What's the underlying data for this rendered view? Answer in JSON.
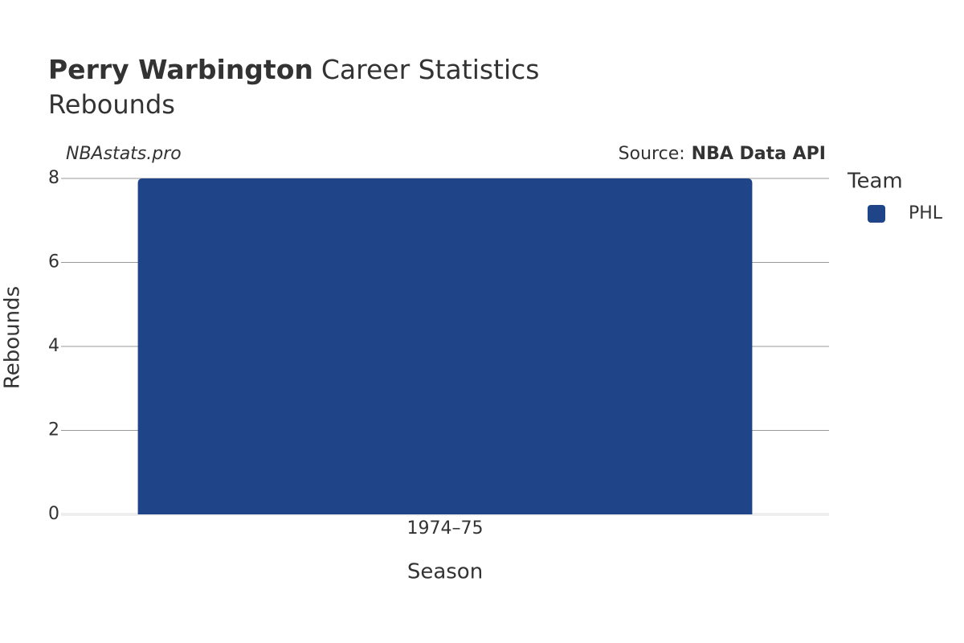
{
  "chart_data": {
    "type": "bar",
    "title_bold": "Perry Warbington",
    "title": "Career Statistics",
    "subtitle": "Rebounds",
    "watermark": "NBAstats.pro",
    "source_label": "Source:",
    "source": "NBA Data API",
    "x_label": "Season",
    "y_label": "Rebounds",
    "legend_title": "Team",
    "categories": [
      "1974–75"
    ],
    "series": [
      {
        "name": "PHL",
        "color": "#1f4488",
        "values": [
          8
        ]
      }
    ],
    "ylim": [
      0,
      8
    ],
    "yticks": [
      0,
      2,
      4,
      6,
      8
    ],
    "grid": true
  }
}
